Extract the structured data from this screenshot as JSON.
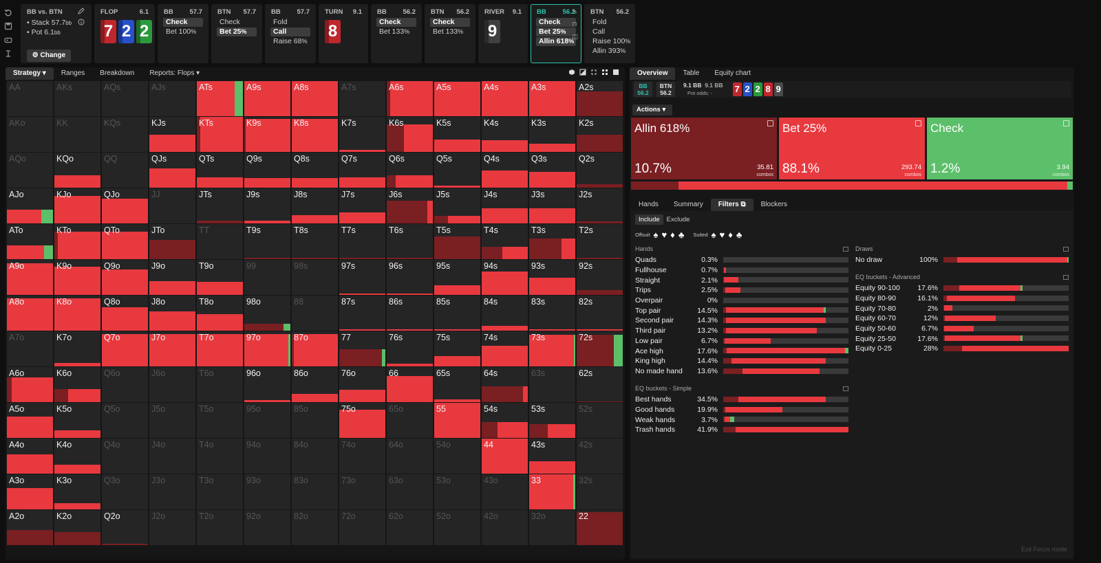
{
  "colors": {
    "allin": "#7a1f22",
    "bet": "#e8393f",
    "check": "#5cbf6a",
    "cell_bg": "#252526",
    "bb_accent": "#2cc6b0"
  },
  "left_toolbar": [
    "undo-icon",
    "save-icon",
    "gamepad-icon",
    "text-cursor-icon"
  ],
  "info": {
    "title": "BB vs. BTN",
    "stack": "Stack 57.7",
    "stack_unit": "bb",
    "pot": "Pot 6.1",
    "pot_unit": "bb",
    "change": "Change"
  },
  "nodes": [
    {
      "kind": "board",
      "title": "FLOP",
      "value": "6.1",
      "cards": [
        {
          "r": "7",
          "c": "r"
        },
        {
          "r": "2",
          "c": "b"
        },
        {
          "r": "2",
          "c": "g"
        }
      ]
    },
    {
      "kind": "acts",
      "title": "BB",
      "value": "57.7",
      "acts": [
        {
          "l": "Check",
          "sel": true
        },
        {
          "l": "Bet 100",
          "pct": "%"
        }
      ]
    },
    {
      "kind": "acts",
      "title": "BTN",
      "value": "57.7",
      "acts": [
        {
          "l": "Check"
        },
        {
          "l": "Bet 25",
          "pct": "%",
          "sel": true
        }
      ]
    },
    {
      "kind": "acts",
      "title": "BB",
      "value": "57.7",
      "acts": [
        {
          "l": "Fold"
        },
        {
          "l": "Call",
          "sel": true
        },
        {
          "l": "Raise 68",
          "pct": "%"
        }
      ]
    },
    {
      "kind": "board",
      "title": "TURN",
      "value": "9.1",
      "cards": [
        {
          "r": "8",
          "c": "r"
        }
      ]
    },
    {
      "kind": "acts",
      "title": "BB",
      "value": "56.2",
      "acts": [
        {
          "l": "Check",
          "sel": true
        },
        {
          "l": "Bet 133",
          "pct": "%"
        }
      ]
    },
    {
      "kind": "acts",
      "title": "BTN",
      "value": "56.2",
      "acts": [
        {
          "l": "Check",
          "sel": true
        },
        {
          "l": "Bet 133",
          "pct": "%"
        }
      ]
    },
    {
      "kind": "board",
      "title": "RIVER",
      "value": "9.1",
      "cards": [
        {
          "r": "9",
          "c": "k"
        }
      ]
    },
    {
      "kind": "acts",
      "title": "BB",
      "value": "56.2",
      "selected": true,
      "acts": [
        {
          "l": "Check",
          "sel": true
        },
        {
          "l": "Bet 25",
          "pct": "%",
          "sel": true
        },
        {
          "l": "Allin 618",
          "pct": "%",
          "sel": true
        }
      ]
    },
    {
      "kind": "acts",
      "title": "BTN",
      "value": "56.2",
      "locked": true,
      "acts": [
        {
          "l": "Fold"
        },
        {
          "l": "Call"
        },
        {
          "l": "Raise 100",
          "pct": "%"
        },
        {
          "l": "Allin 393",
          "pct": "%"
        }
      ]
    }
  ],
  "left_tabs": [
    {
      "l": "Strategy",
      "active": true,
      "dd": true
    },
    {
      "l": "Ranges"
    },
    {
      "l": "Breakdown"
    },
    {
      "l": "Reports: Flops",
      "dd": true
    }
  ],
  "grid": [
    [
      "AA|0",
      "ATs|1|0,0.82,0.18",
      "A9s|1|0,1,0",
      "A8s|1|0,1,0",
      "A7s|0",
      "A6s|1|0.1,0.9,0",
      "A5s|1|0,1,0",
      "A4s|1|0,1,0",
      "A3s|1|0,1,0",
      "A2s|1|0.8,0.2,0"
    ],
    [
      "AKs|0",
      "KTs|1|0.1,0.9,0",
      "K9s|1|0.03,0.97,0",
      "K8s|1|0,1,0",
      "K7s|0.06|0,1,0",
      "K6s|0.78|0.45,0.55,0",
      "K5s|0.36|0,1,0",
      "K4s|0.33|0,1,0",
      "K3s|0.23|0,1,0",
      "K2s|0.49|0.8,0.2,0"
    ],
    [
      "AKo|0",
      "KQs|0",
      "KJs|1|0,1,0",
      "QTs|0.3|0,1,0",
      "Q9s|0.27|0,1,0",
      "Q8s|0.27|0,1,0",
      "Q7s|0.3|0,1,0",
      "Q6s|0.35|0.2,0.8,0",
      "Q5s|0.06|0,1,0",
      "Q4s|0.5|0,1,0"
    ],
    [
      "KK|0",
      "AQs|0",
      "KQo|0.35|0,1,0",
      "QQ|0",
      "QJs|0.55|0,1,0",
      "JTs|0.1|0.8,0.2,0",
      "J9s|0.1|0,1,0",
      "J8s|0.24|0,1,0",
      "J7s|0.32|0,1,0",
      "J6s|0.65|0.9,0.1,0"
    ],
    [],
    [],
    [],
    [],
    [],
    [],
    [],
    [],
    [],
    []
  ],
  "right_tabs": [
    {
      "l": "Overview",
      "active": true
    },
    {
      "l": "Table"
    },
    {
      "l": "Equity chart"
    }
  ],
  "summary": {
    "bb_pos": "BB",
    "bb_val": "56.2",
    "btn_pos": "BTN",
    "btn_val": "56.2",
    "pot1": "9.1 BB",
    "pot2": "9.1 BB",
    "pot_odds_label": "Pot odds:",
    "pot_odds": "-",
    "cards": [
      {
        "r": "7",
        "c": "r"
      },
      {
        "r": "2",
        "c": "b"
      },
      {
        "r": "2",
        "c": "g"
      },
      {
        "r": "8",
        "c": "r"
      },
      {
        "r": "9",
        "c": "k"
      }
    ]
  },
  "actions_dd": "Actions",
  "action_boxes": [
    {
      "name": "Allin 618%",
      "pct": "10.7%",
      "combos": "35.81",
      "combos_label": "combos",
      "color": "#7a1f22"
    },
    {
      "name": "Bet 25%",
      "pct": "88.1%",
      "combos": "293.74",
      "combos_label": "combos",
      "color": "#e8393f"
    },
    {
      "name": "Check",
      "pct": "1.2%",
      "combos": "3.94",
      "combos_label": "combos",
      "color": "#5cbf6a"
    }
  ],
  "overall": [
    10.7,
    88.1,
    1.2
  ],
  "right_tabs2": [
    {
      "l": "Hands"
    },
    {
      "l": "Summary"
    },
    {
      "l": "Filters",
      "active": true,
      "ic": true
    },
    {
      "l": "Blockers"
    }
  ],
  "include_tabs": [
    {
      "l": "Include",
      "on": true
    },
    {
      "l": "Exclude"
    }
  ],
  "offsuit_label": "Offsuit",
  "suited_label": "Suited",
  "hands_title": "Hands",
  "hands": [
    [
      "Quads",
      "0.3%",
      [
        0,
        0,
        0
      ]
    ],
    [
      "Fullhouse",
      "0.7%",
      [
        0.4,
        0.6,
        0
      ]
    ],
    [
      "Straight",
      "2.1%",
      [
        0.05,
        0.95,
        0
      ]
    ],
    [
      "Trips",
      "2.5%",
      [
        0.1,
        0.9,
        0
      ]
    ],
    [
      "Overpair",
      "0%",
      [
        0,
        0,
        0
      ]
    ],
    [
      "Top pair",
      "14.5%",
      [
        0.03,
        0.95,
        0.02
      ]
    ],
    [
      "Second pair",
      "14.3%",
      [
        0.03,
        0.97,
        0
      ]
    ],
    [
      "Third pair",
      "13.2%",
      [
        0.03,
        0.97,
        0
      ]
    ],
    [
      "Low pair",
      "6.7%",
      [
        0.03,
        0.97,
        0
      ]
    ],
    [
      "Ace high",
      "17.6%",
      [
        0.03,
        0.94,
        0.03
      ]
    ],
    [
      "King high",
      "14.4%",
      [
        0.08,
        0.92,
        0
      ]
    ],
    [
      "No made hand",
      "13.6%",
      [
        0.2,
        0.8,
        0
      ]
    ]
  ],
  "hands_bar_frac": [
    0.01,
    0.02,
    0.12,
    0.14,
    0,
    0.82,
    0.82,
    0.75,
    0.38,
    1,
    0.82,
    0.77
  ],
  "eqs_title": "EQ buckets - Simple",
  "eqs": [
    [
      "Best hands",
      "34.5%",
      [
        0.15,
        0.85,
        0
      ]
    ],
    [
      "Good hands",
      "19.9%",
      [
        0.03,
        0.97,
        0
      ]
    ],
    [
      "Weak hands",
      "3.7%",
      [
        0.1,
        0.5,
        0.4
      ]
    ],
    [
      "Trash hands",
      "41.9%",
      [
        0.1,
        0.9,
        0
      ]
    ]
  ],
  "eqs_bar_frac": [
    0.82,
    0.47,
    0.09,
    1
  ],
  "draws_title": "Draws",
  "draws": [
    [
      "No draw",
      "100%",
      [
        0.11,
        0.88,
        0.01
      ]
    ]
  ],
  "draws_bar_frac": [
    1
  ],
  "eqa_title": "EQ buckets - Advanced",
  "eqa": [
    [
      "Equity 90-100",
      "17.6%",
      [
        0.2,
        0.78,
        0.02
      ]
    ],
    [
      "Equity 80-90",
      "16.1%",
      [
        0.05,
        0.95,
        0
      ]
    ],
    [
      "Equity 70-80",
      "2%",
      [
        0.1,
        0.9,
        0
      ]
    ],
    [
      "Equity 60-70",
      "12%",
      [
        0.03,
        0.97,
        0
      ]
    ],
    [
      "Equity 50-60",
      "6.7%",
      [
        0.03,
        0.97,
        0
      ]
    ],
    [
      "Equity 25-50",
      "17.6%",
      [
        0.02,
        0.96,
        0.02
      ]
    ],
    [
      "Equity 0-25",
      "28%",
      [
        0.15,
        0.85,
        0
      ]
    ]
  ],
  "eqa_bar_frac": [
    0.63,
    0.57,
    0.07,
    0.42,
    0.24,
    0.63,
    1
  ],
  "exit_focus": "Exit Focus mode"
}
